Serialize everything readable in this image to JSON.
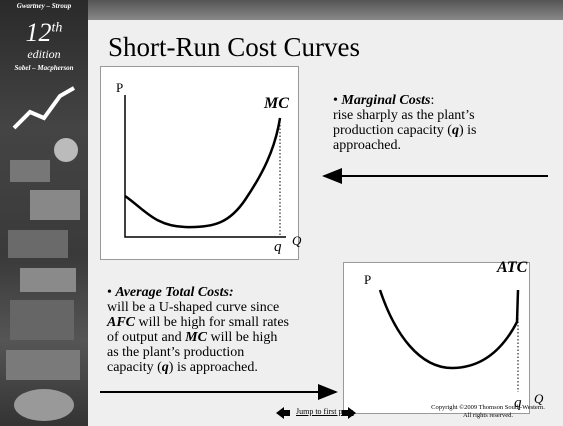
{
  "sidebar": {
    "authors_top": "Gwartney – Stroup",
    "edition_number": "12",
    "edition_suffix": "th",
    "edition": "edition",
    "authors_bottom": "Sobel – Macpherson"
  },
  "title": "Short-Run Cost Curves",
  "mc_graph": {
    "y_axis": "P",
    "curve": "MC",
    "capacity": "q",
    "x_axis": "Q"
  },
  "mc_note": {
    "bullet": "•",
    "segments": [
      "Marginal Costs",
      ":",
      "rise sharply as the plant’s",
      "production capacity (",
      "q",
      ") is",
      "approached."
    ]
  },
  "atc_graph": {
    "y_axis": "P",
    "curve": "ATC",
    "capacity": "q",
    "x_axis": "Q"
  },
  "atc_note": {
    "bullet": "•",
    "segments": [
      "Average Total Costs:",
      "will be a U-shaped curve since",
      "AFC",
      " will be high for small rates",
      "of output and ",
      "MC",
      " will be high",
      "as the plant’s production",
      "capacity (",
      "q",
      ") is approached."
    ]
  },
  "footer": {
    "link": "Jump to first page",
    "copyright": "Copyright ©2009  Thomson South-Western.",
    "rights": "All rights reserved."
  }
}
